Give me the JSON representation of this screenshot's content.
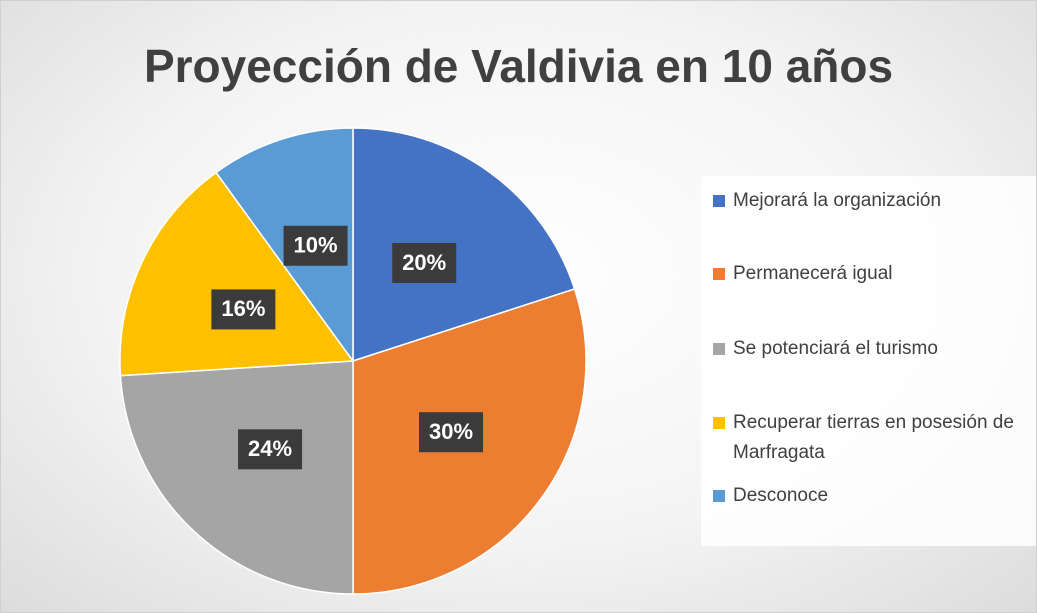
{
  "chart_data": {
    "type": "pie",
    "title": "Proyección de Valdivia en 10 años",
    "categories": [
      "Mejorará la organización",
      "Permanecerá igual",
      "Se potenciará el turismo",
      "Recuperar tierras en posesión de Marfragata",
      "Desconoce"
    ],
    "values": [
      20,
      30,
      24,
      16,
      10
    ],
    "value_labels": [
      "20%",
      "30%",
      "24%",
      "16%",
      "10%"
    ],
    "colors": [
      "#4472c4",
      "#ed7d31",
      "#a5a5a5",
      "#ffc000",
      "#5b9bd5"
    ],
    "legend": "right"
  }
}
